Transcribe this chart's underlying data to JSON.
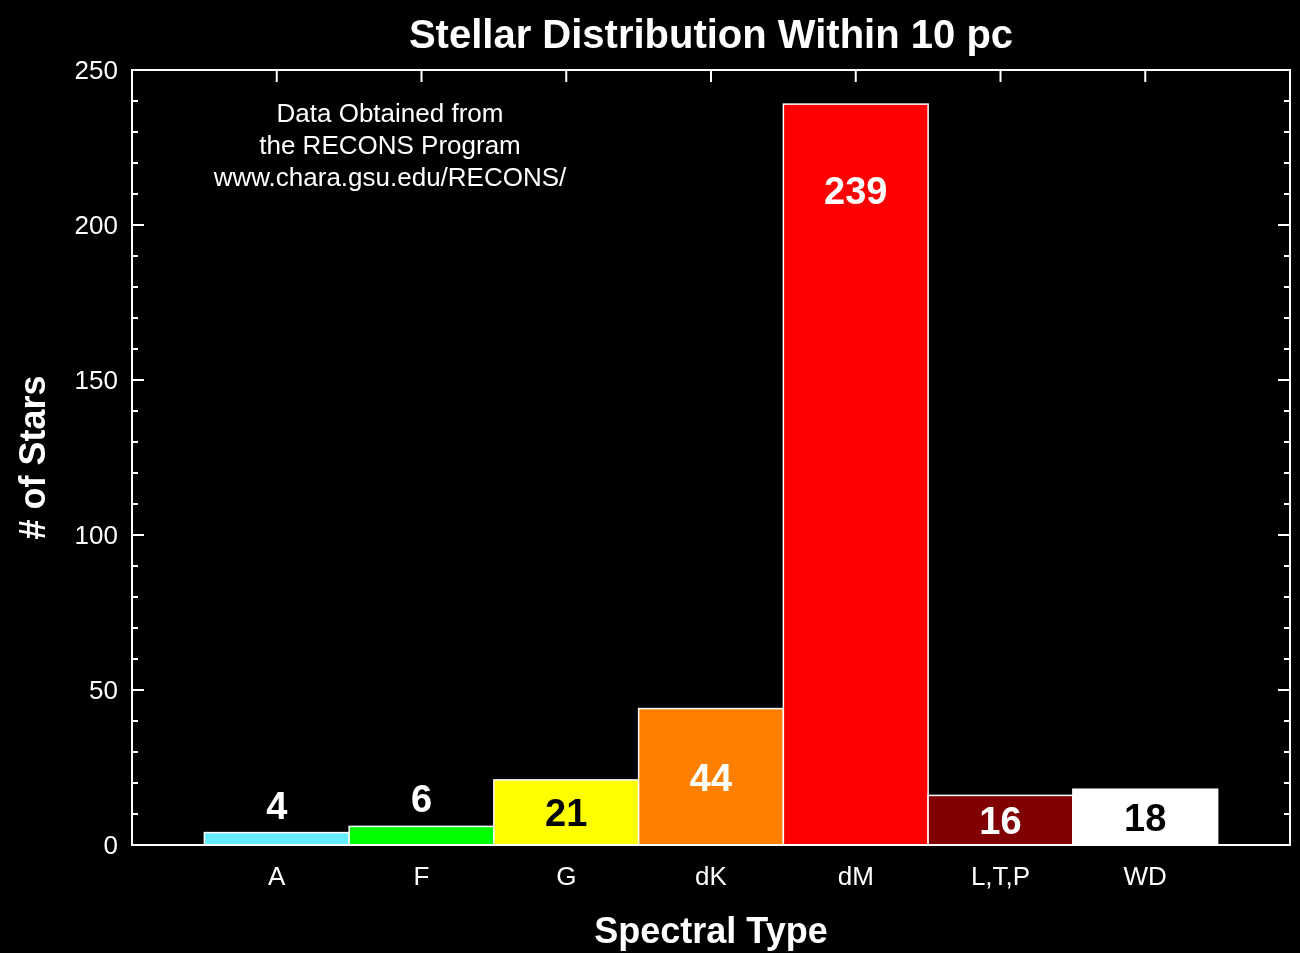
{
  "chart_data": {
    "type": "bar",
    "title": "Stellar Distribution Within 10 pc",
    "xlabel": "Spectral Type",
    "ylabel": "# of Stars",
    "annotations": [
      "Data Obtained from\nthe RECONS Program\nwww.chara.gsu.edu/RECONS/"
    ],
    "categories": [
      "A",
      "F",
      "G",
      "dK",
      "dM",
      "L,T,P",
      "WD"
    ],
    "values": [
      4,
      6,
      21,
      44,
      239,
      16,
      18
    ],
    "colors": [
      "#66ecff",
      "#00ff00",
      "#ffff00",
      "#ff8000",
      "#ff0000",
      "#800000",
      "#ffffff"
    ],
    "ylim": [
      0,
      250
    ],
    "yticks": [
      0,
      {
        "value": 10,
        "label": null
      },
      {
        "value": 20,
        "label": null
      },
      {
        "value": 30,
        "label": null
      },
      {
        "value": 40,
        "label": null
      },
      50,
      {
        "value": 60,
        "label": null
      },
      {
        "value": 70,
        "label": null
      },
      {
        "value": 80,
        "label": null
      },
      {
        "value": 90,
        "label": null
      },
      100,
      {
        "value": 110,
        "label": null
      },
      {
        "value": 120,
        "label": null
      },
      {
        "value": 130,
        "label": null
      },
      {
        "value": 140,
        "label": null
      },
      150,
      {
        "value": 160,
        "label": null
      },
      {
        "value": 170,
        "label": null
      },
      {
        "value": 180,
        "label": null
      },
      {
        "value": 190,
        "label": null
      },
      200,
      {
        "value": 210,
        "label": null
      },
      {
        "value": 220,
        "label": null
      },
      {
        "value": 230,
        "label": null
      },
      {
        "value": 240,
        "label": null
      },
      250
    ],
    "data_labels": true,
    "grid": false
  }
}
